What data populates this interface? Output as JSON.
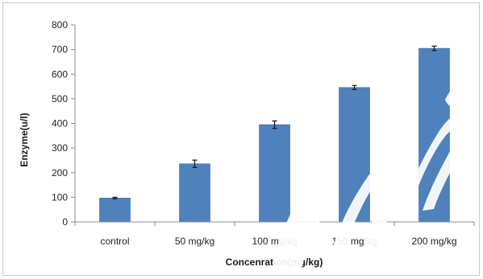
{
  "colors": {
    "bar": "#4f81bd",
    "bar_edge": "#3d6aa3",
    "axis": "#8c8c8c",
    "error_bar": "#111111",
    "watermark": "#ffffff"
  },
  "chart_data": {
    "type": "bar",
    "xlabel": "Concenration(mg/kg)",
    "ylabel": "Enzyme(u/l)",
    "ylim": [
      0,
      800
    ],
    "yticks": [
      0,
      100,
      200,
      300,
      400,
      500,
      600,
      700,
      800
    ],
    "categories": [
      "control",
      "50 mg/kg",
      "100 mg/kg",
      "150 mg/kg",
      "200 mg/kg"
    ],
    "values": [
      97,
      236,
      395,
      546,
      705
    ],
    "errors": [
      3,
      15,
      15,
      8,
      9
    ],
    "grid": false,
    "legend": "none"
  }
}
